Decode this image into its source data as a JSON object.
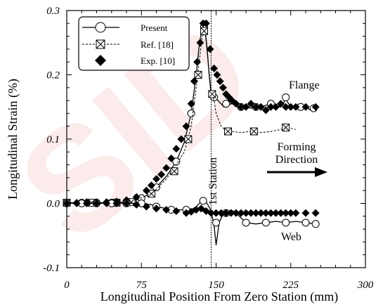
{
  "chart_data": {
    "type": "line",
    "xlabel": "Longitudinal Position From Zero Station  (mm)",
    "ylabel": "Longitudinal Strain  (%)",
    "xlim": [
      0,
      300
    ],
    "ylim": [
      -0.1,
      0.3
    ],
    "xticks": [
      "0",
      "75",
      "150",
      "225",
      "300"
    ],
    "yticks": [
      "-0.1",
      "0.0",
      "0.1",
      "0.2",
      "0.3"
    ],
    "legend": {
      "placement": "top-left",
      "entries": [
        "Present",
        "Ref. [18]",
        "Exp. [10]"
      ]
    },
    "annotations": {
      "flange": "Flange",
      "web": "Web",
      "station": "1st Station",
      "station_x": 145,
      "forming1": "Forming",
      "forming2": "Direction"
    },
    "series": [
      {
        "name": "Present",
        "style": "solid",
        "marker": "circle",
        "x": [
          0,
          15,
          30,
          45,
          60,
          70,
          80,
          90,
          100,
          110,
          118,
          125,
          130,
          133,
          136,
          139,
          141,
          143,
          145,
          148,
          152,
          158,
          165,
          175,
          185,
          195,
          205,
          215,
          220,
          225,
          235,
          245,
          250
        ],
        "y": [
          0.001,
          0.001,
          0.001,
          0.001,
          0.002,
          0.005,
          0.012,
          0.025,
          0.042,
          0.065,
          0.095,
          0.14,
          0.2,
          0.245,
          0.275,
          0.27,
          0.24,
          0.2,
          0.17,
          0.165,
          0.16,
          0.15,
          0.155,
          0.152,
          0.148,
          0.15,
          0.155,
          0.15,
          0.162,
          0.15,
          0.155,
          0.145,
          0.15
        ],
        "marker_x": [
          0,
          15,
          30,
          45,
          60,
          75,
          90,
          110,
          125,
          132,
          138,
          148,
          160,
          175,
          190,
          205,
          220,
          235,
          248
        ],
        "marker_y": [
          0.001,
          0.001,
          0.001,
          0.001,
          0.002,
          0.008,
          0.025,
          0.065,
          0.14,
          0.2,
          0.275,
          0.165,
          0.155,
          0.15,
          0.15,
          0.155,
          0.165,
          0.15,
          0.148
        ]
      },
      {
        "name": "Ref. [18]",
        "style": "dashed",
        "marker": "box-x",
        "x": [
          0,
          15,
          30,
          45,
          60,
          70,
          80,
          90,
          100,
          110,
          118,
          125,
          130,
          133,
          136,
          139,
          142,
          145,
          148,
          150,
          155,
          160,
          165,
          175,
          185,
          195,
          205,
          215,
          222,
          230
        ],
        "y": [
          0.001,
          0.001,
          0.001,
          0.001,
          0.002,
          0.005,
          0.012,
          0.022,
          0.038,
          0.06,
          0.08,
          0.12,
          0.18,
          0.22,
          0.26,
          0.265,
          0.22,
          0.175,
          0.16,
          0.14,
          0.12,
          0.113,
          0.112,
          0.11,
          0.112,
          0.11,
          0.112,
          0.115,
          0.118,
          0.115
        ],
        "marker_x": [
          0,
          25,
          50,
          65,
          85,
          108,
          122,
          132,
          138,
          146,
          162,
          188,
          220
        ],
        "marker_y": [
          0.001,
          0.001,
          0.001,
          0.002,
          0.015,
          0.05,
          0.1,
          0.2,
          0.268,
          0.17,
          0.112,
          0.112,
          0.118
        ]
      },
      {
        "name": "Exp. [10]",
        "style": "none",
        "marker": "diamond",
        "x": [
          0,
          10,
          20,
          30,
          40,
          50,
          60,
          70,
          80,
          85,
          90,
          95,
          100,
          105,
          110,
          115,
          120,
          125,
          128,
          131,
          134,
          137,
          140,
          144,
          148,
          151,
          154,
          157,
          160,
          163,
          166,
          170,
          175,
          180,
          185,
          190,
          195,
          200,
          205,
          210,
          215,
          220,
          225,
          230,
          240,
          250
        ],
        "y": [
          0.001,
          0.001,
          0.002,
          0.002,
          0.002,
          0.003,
          0.005,
          0.01,
          0.02,
          0.028,
          0.038,
          0.045,
          0.055,
          0.07,
          0.085,
          0.1,
          0.12,
          0.155,
          0.19,
          0.22,
          0.25,
          0.28,
          0.28,
          0.24,
          0.21,
          0.2,
          0.19,
          0.18,
          0.17,
          0.165,
          0.16,
          0.155,
          0.15,
          0.15,
          0.155,
          0.15,
          0.15,
          0.145,
          0.15,
          0.15,
          0.155,
          0.15,
          0.15,
          0.15,
          0.15,
          0.15
        ]
      },
      {
        "name": "Present (Web)",
        "style": "solid",
        "marker": "circle",
        "x": [
          0,
          30,
          60,
          75,
          85,
          90,
          100,
          110,
          120,
          125,
          130,
          135,
          138,
          140,
          142,
          145,
          148,
          150,
          153,
          156,
          160,
          165,
          170,
          180,
          190,
          200,
          210,
          220,
          230,
          240,
          250
        ],
        "y": [
          0,
          0,
          0,
          0,
          -0.002,
          -0.005,
          -0.008,
          -0.01,
          -0.01,
          -0.01,
          -0.005,
          0.003,
          0.004,
          0.002,
          -0.003,
          -0.012,
          -0.035,
          -0.065,
          -0.03,
          -0.02,
          -0.015,
          -0.01,
          -0.015,
          -0.03,
          -0.032,
          -0.03,
          -0.028,
          -0.03,
          -0.028,
          -0.03,
          -0.032
        ],
        "marker_x": [
          0,
          15,
          30,
          45,
          60,
          75,
          90,
          105,
          120,
          137,
          150,
          160,
          180,
          200,
          220,
          240,
          250
        ],
        "marker_y": [
          0,
          0,
          0,
          0,
          0,
          0,
          -0.005,
          -0.01,
          -0.01,
          0.004,
          -0.03,
          -0.015,
          -0.03,
          -0.03,
          -0.03,
          -0.03,
          -0.032
        ]
      },
      {
        "name": "Exp. [10] (Web)",
        "style": "none",
        "marker": "diamond",
        "x": [
          0,
          10,
          20,
          30,
          40,
          50,
          60,
          70,
          80,
          90,
          100,
          110,
          120,
          125,
          130,
          135,
          140,
          145,
          150,
          155,
          160,
          165,
          170,
          175,
          180,
          185,
          190,
          195,
          200,
          205,
          210,
          215,
          220,
          225,
          230,
          240,
          250
        ],
        "y": [
          0,
          0,
          0,
          0,
          0,
          0,
          0,
          -0.002,
          -0.005,
          -0.008,
          -0.01,
          -0.012,
          -0.015,
          -0.013,
          -0.01,
          -0.008,
          -0.012,
          -0.015,
          -0.015,
          -0.015,
          -0.015,
          -0.015,
          -0.015,
          -0.015,
          -0.015,
          -0.015,
          -0.015,
          -0.015,
          -0.015,
          -0.015,
          -0.015,
          -0.015,
          -0.015,
          -0.015,
          -0.015,
          -0.015,
          -0.015
        ]
      }
    ]
  }
}
